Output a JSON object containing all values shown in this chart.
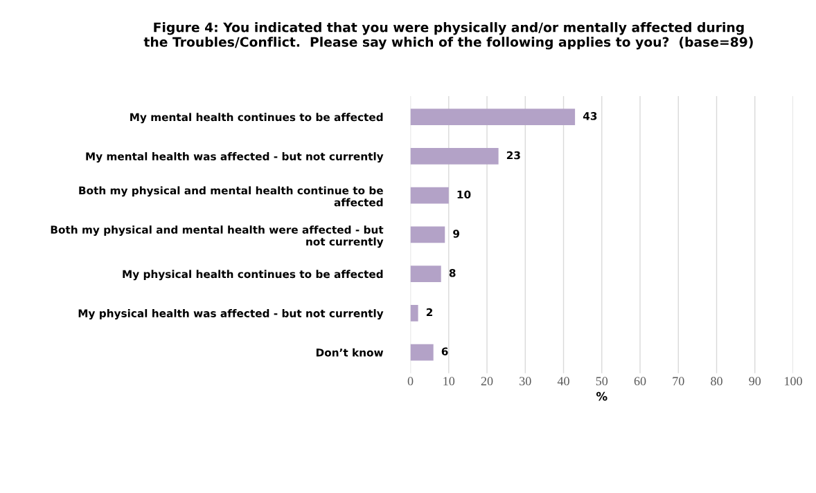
{
  "chart_data": {
    "type": "bar",
    "orientation": "horizontal",
    "title": "Figure 4: You indicated that you were physically and/or mentally affected during\nthe Troubles/Conflict.  Please say which of the following applies to you?  (base=89)",
    "categories": [
      "My mental health continues to be affected",
      "My mental health was affected - but not currently",
      "Both my physical and mental health continue to be\naffected",
      "Both my physical and mental health were affected - but\nnot currently",
      "My physical health continues to be affected",
      "My physical health was affected - but not currently",
      "Don’t know"
    ],
    "values": [
      43,
      23,
      10,
      9,
      8,
      2,
      6
    ],
    "color": "#b3a2c7",
    "xlim": [
      0,
      100
    ],
    "xticks": [
      0,
      10,
      20,
      30,
      40,
      50,
      60,
      70,
      80,
      90,
      100
    ],
    "xlabel": "%",
    "grid": "x",
    "data_labels": true,
    "legend": false
  }
}
